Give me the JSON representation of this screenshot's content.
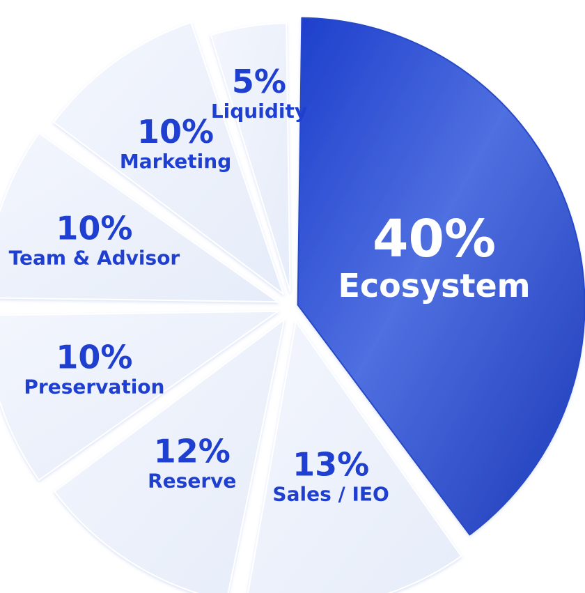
{
  "chart_data": {
    "type": "pie",
    "title": "",
    "slices": [
      {
        "label": "Ecosystem",
        "value": 40,
        "value_label": "40%",
        "color": "#2e50d2",
        "text_color": "#ffffff"
      },
      {
        "label": "Sales / IEO",
        "value": 13,
        "value_label": "13%",
        "color": "#eef2fb",
        "text_color": "#1f3fd0"
      },
      {
        "label": "Reserve",
        "value": 12,
        "value_label": "12%",
        "color": "#eef2fb",
        "text_color": "#1f3fd0"
      },
      {
        "label": "Preservation",
        "value": 10,
        "value_label": "10%",
        "color": "#eef2fb",
        "text_color": "#1f3fd0"
      },
      {
        "label": "Team & Advisor",
        "value": 10,
        "value_label": "10%",
        "color": "#eef2fb",
        "text_color": "#1f3fd0"
      },
      {
        "label": "Marketing",
        "value": 10,
        "value_label": "10%",
        "color": "#eef2fb",
        "text_color": "#1f3fd0"
      },
      {
        "label": "Liquidity",
        "value": 5,
        "value_label": "5%",
        "color": "#eef2fb",
        "text_color": "#1f3fd0"
      }
    ]
  }
}
